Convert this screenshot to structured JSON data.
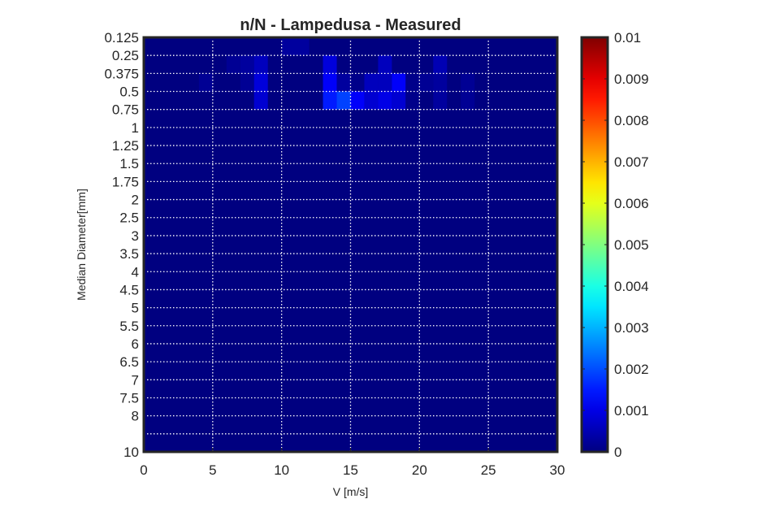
{
  "chart_data": {
    "type": "heatmap",
    "title": "n/N - Lampedusa - Measured",
    "xlabel": "V [m/s]",
    "ylabel": "Median Diameter[mm]",
    "xlim": [
      0,
      30
    ],
    "x_ticks": [
      "0",
      "5",
      "10",
      "15",
      "20",
      "25",
      "30"
    ],
    "y_categories": [
      "0.125",
      "0.25",
      "0.375",
      "0.5",
      "0.75",
      "1",
      "1.25",
      "1.5",
      "1.75",
      "2",
      "2.5",
      "3",
      "3.5",
      "4",
      "4.5",
      "5",
      "5.5",
      "6",
      "6.5",
      "7",
      "7.5",
      "8",
      "10"
    ],
    "x_bin_width": 1,
    "colormap": "jet",
    "clim": [
      0,
      0.01
    ],
    "colorbar_ticks": [
      "0",
      "0.001",
      "0.002",
      "0.003",
      "0.004",
      "0.005",
      "0.006",
      "0.007",
      "0.008",
      "0.009",
      "0.01"
    ],
    "grid": true,
    "cells": [
      {
        "row": "0.125",
        "x": [
          10,
          12
        ],
        "value": 0.0003
      },
      {
        "row": "0.25",
        "x": [
          6,
          7
        ],
        "value": 0.0002
      },
      {
        "row": "0.25",
        "x": [
          7,
          8
        ],
        "value": 0.0003
      },
      {
        "row": "0.25",
        "x": [
          8,
          9
        ],
        "value": 0.0006
      },
      {
        "row": "0.25",
        "x": [
          13,
          14
        ],
        "value": 0.0009
      },
      {
        "row": "0.25",
        "x": [
          17,
          18
        ],
        "value": 0.0006
      },
      {
        "row": "0.25",
        "x": [
          21,
          22
        ],
        "value": 0.0005
      },
      {
        "row": "0.375",
        "x": [
          4,
          5
        ],
        "value": 0.0002
      },
      {
        "row": "0.375",
        "x": [
          7,
          8
        ],
        "value": 0.0002
      },
      {
        "row": "0.375",
        "x": [
          8,
          9
        ],
        "value": 0.0009
      },
      {
        "row": "0.375",
        "x": [
          13,
          14
        ],
        "value": 0.0012
      },
      {
        "row": "0.375",
        "x": [
          14,
          15
        ],
        "value": 0.0003
      },
      {
        "row": "0.375",
        "x": [
          15,
          16
        ],
        "value": 0.0001
      },
      {
        "row": "0.375",
        "x": [
          16,
          17
        ],
        "value": 0.0006
      },
      {
        "row": "0.375",
        "x": [
          17,
          18
        ],
        "value": 0.0006
      },
      {
        "row": "0.375",
        "x": [
          18,
          19
        ],
        "value": 0.0012
      },
      {
        "row": "0.375",
        "x": [
          19,
          20
        ],
        "value": 0.0001
      },
      {
        "row": "0.375",
        "x": [
          20,
          21
        ],
        "value": 0.0002
      },
      {
        "row": "0.375",
        "x": [
          21,
          22
        ],
        "value": 0.0003
      },
      {
        "row": "0.375",
        "x": [
          23,
          24
        ],
        "value": 0.0002
      },
      {
        "row": "0.5",
        "x": [
          8,
          9
        ],
        "value": 0.0008
      },
      {
        "row": "0.5",
        "x": [
          13,
          14
        ],
        "value": 0.0015
      },
      {
        "row": "0.5",
        "x": [
          14,
          15
        ],
        "value": 0.0019
      },
      {
        "row": "0.5",
        "x": [
          15,
          16
        ],
        "value": 0.0012
      },
      {
        "row": "0.5",
        "x": [
          16,
          17
        ],
        "value": 0.0008
      },
      {
        "row": "0.5",
        "x": [
          17,
          18
        ],
        "value": 0.001
      },
      {
        "row": "0.5",
        "x": [
          18,
          19
        ],
        "value": 0.0008
      },
      {
        "row": "0.5",
        "x": [
          19,
          20
        ],
        "value": 0.0001
      },
      {
        "row": "0.5",
        "x": [
          21,
          22
        ],
        "value": 0.0003
      },
      {
        "row": "0.5",
        "x": [
          23,
          24
        ],
        "value": 0.0002
      }
    ]
  }
}
